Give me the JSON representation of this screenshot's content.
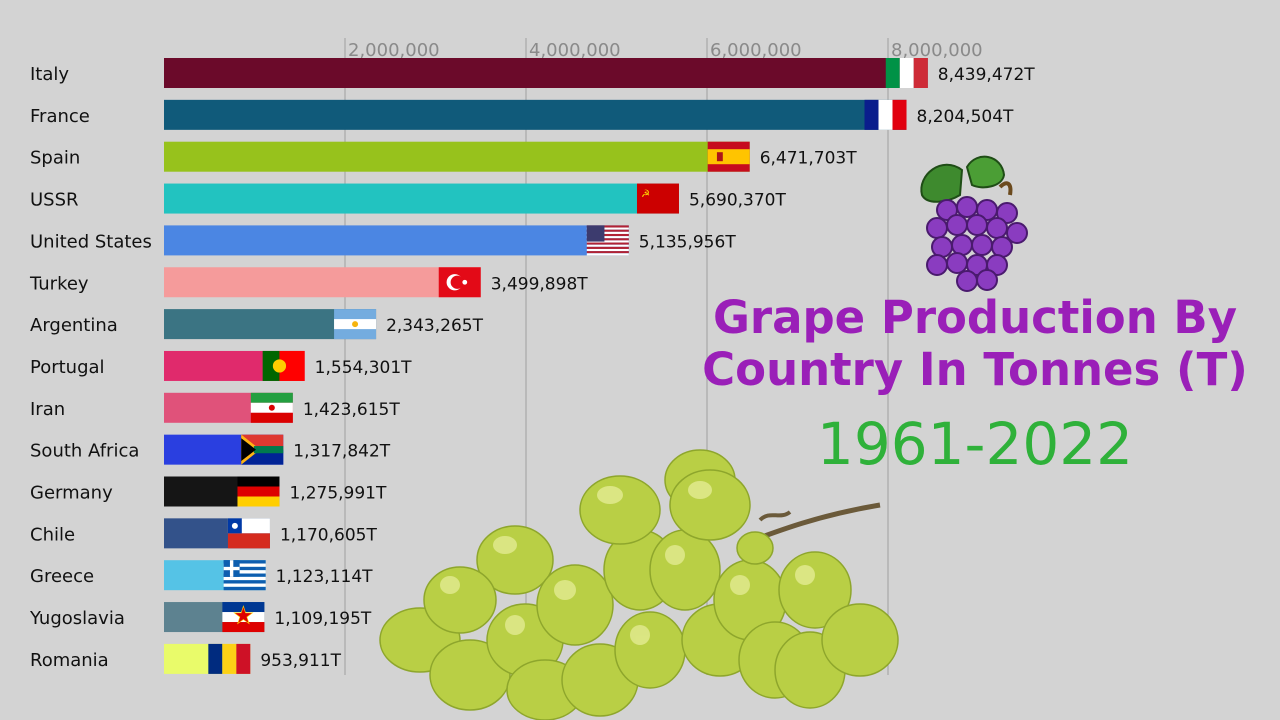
{
  "title_line1": "Grape Production By",
  "title_line2": "Country In Tonnes (T)",
  "subtitle": "1961-2022",
  "chart_data": {
    "type": "bar",
    "orientation": "horizontal",
    "x_ticks": [
      "2,000,000",
      "4,000,000",
      "6,000,000",
      "8,000,000"
    ],
    "x_tick_values": [
      2000000,
      4000000,
      6000000,
      8000000
    ],
    "xlim": [
      0,
      10000000
    ],
    "value_suffix": "T",
    "categories": [
      "Italy",
      "France",
      "Spain",
      "USSR",
      "United States",
      "Turkey",
      "Argentina",
      "Portugal",
      "Iran",
      "South Africa",
      "Germany",
      "Chile",
      "Greece",
      "Yugoslavia",
      "Romania"
    ],
    "values": [
      8439472,
      8204504,
      6471703,
      5690370,
      5135956,
      3499898,
      2343265,
      1554301,
      1423615,
      1317842,
      1275991,
      1170605,
      1123114,
      1109195,
      953911
    ],
    "value_labels": [
      "8,439,472T",
      "8,204,504T",
      "6,471,703T",
      "5,690,370T",
      "5,135,956T",
      "3,499,898T",
      "2,343,265T",
      "1,554,301T",
      "1,423,615T",
      "1,317,842T",
      "1,275,991T",
      "1,170,605T",
      "1,123,114T",
      "1,109,195T",
      "953,911T"
    ],
    "colors": [
      "#6b0a2a",
      "#105a7a",
      "#97c21c",
      "#22c3c0",
      "#4b86e3",
      "#f59b9b",
      "#3b7483",
      "#e02a6c",
      "#e0527a",
      "#2a3fe0",
      "#151515",
      "#33528a",
      "#55c3e6",
      "#5d8290",
      "#e9fb6a"
    ],
    "flags": [
      "italy-flag",
      "france-flag",
      "spain-flag",
      "ussr-flag",
      "usa-flag",
      "turkey-flag",
      "argentina-flag",
      "portugal-flag",
      "iran-flag",
      "south-africa-flag",
      "germany-flag",
      "chile-flag",
      "greece-flag",
      "yugoslavia-flag",
      "romania-flag"
    ],
    "grid": true
  }
}
